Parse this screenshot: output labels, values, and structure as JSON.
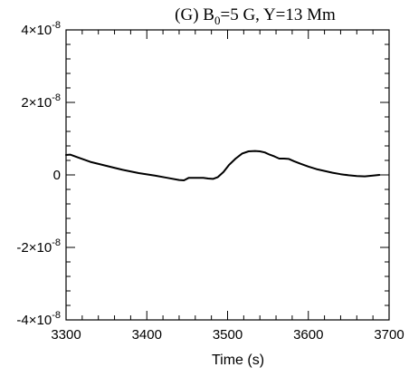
{
  "chart_data": {
    "type": "line",
    "title": {
      "prefix": "(G) B",
      "subscript": "0",
      "suffix": "=5 G,   Y=13 Mm"
    },
    "xlabel": "Time (s)",
    "ylabel": "",
    "xlim": [
      3300,
      3700
    ],
    "ylim": [
      -4e-08,
      4e-08
    ],
    "x_ticks": [
      {
        "value": 3300,
        "label": "3300"
      },
      {
        "value": 3400,
        "label": "3400"
      },
      {
        "value": 3500,
        "label": "3500"
      },
      {
        "value": 3600,
        "label": "3600"
      },
      {
        "value": 3700,
        "label": "3700"
      }
    ],
    "y_ticks": [
      {
        "value": 4e-08,
        "mantissa": "4",
        "times": "×10",
        "exponent": "-8"
      },
      {
        "value": 2e-08,
        "mantissa": "2",
        "times": "×10",
        "exponent": "-8"
      },
      {
        "value": 0,
        "mantissa": "0",
        "times": "",
        "exponent": ""
      },
      {
        "value": -2e-08,
        "mantissa": "-2",
        "times": "×10",
        "exponent": "-8"
      },
      {
        "value": -4e-08,
        "mantissa": "-4",
        "times": "×10",
        "exponent": "-8"
      }
    ],
    "series": [
      {
        "color": "#000000",
        "x": [
          3300,
          3305,
          3315,
          3330,
          3350,
          3370,
          3390,
          3410,
          3425,
          3440,
          3446,
          3452,
          3460,
          3470,
          3476,
          3482,
          3488,
          3495,
          3502,
          3510,
          3518,
          3526,
          3534,
          3540,
          3546,
          3552,
          3558,
          3564,
          3570,
          3576,
          3582,
          3590,
          3600,
          3610,
          3620,
          3630,
          3640,
          3650,
          3660,
          3670,
          3680,
          3688
        ],
        "y": [
          5.5e-09,
          5.6e-09,
          4.8e-09,
          3.6e-09,
          2.5e-09,
          1.4e-09,
          5e-10,
          -2e-10,
          -8e-10,
          -1.4e-09,
          -1.5e-09,
          -8e-10,
          -8e-10,
          -8e-10,
          -1e-09,
          -1.1e-09,
          -6e-10,
          8e-10,
          2.8e-09,
          4.5e-09,
          5.9e-09,
          6.5e-09,
          6.6e-09,
          6.5e-09,
          6.2e-09,
          5.6e-09,
          5.1e-09,
          4.5e-09,
          4.5e-09,
          4.4e-09,
          3.8e-09,
          3.1e-09,
          2.3e-09,
          1.6e-09,
          1.1e-09,
          6e-10,
          2e-10,
          -1e-10,
          -3e-10,
          -4e-10,
          -2e-10,
          0
        ]
      }
    ],
    "grid": false,
    "legend": "none"
  }
}
